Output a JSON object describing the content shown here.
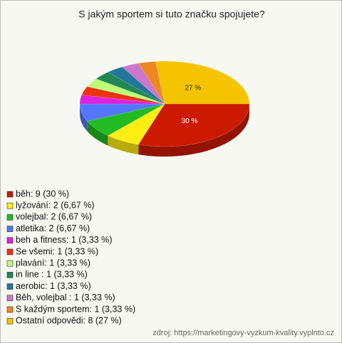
{
  "chart_data": {
    "type": "pie",
    "title": "S jakým sportem si tuto značku spojujete?",
    "categories": [
      "běh: 9 (30 %)",
      "lyžování: 2 (6,67 %)",
      "volejbal: 2 (6,67 %)",
      "atletika: 2 (6,67 %)",
      "beh a fitness: 1 (3,33 %)",
      "Se všemi: 1 (3,33 %)",
      "plavání: 1 (3,33 %)",
      "in line : 1 (3,33 %)",
      "aerobic: 1 (3,33 %)",
      "Běh, volejbal : 1 (3,33 %)",
      "S každým sportem: 1 (3,33 %)",
      "Ostatní odpovědi: 8 (27 %)"
    ],
    "values": [
      9,
      2,
      2,
      2,
      1,
      1,
      1,
      1,
      1,
      1,
      1,
      8
    ],
    "value_labels": [
      "30 %",
      null,
      null,
      null,
      null,
      null,
      null,
      null,
      null,
      null,
      null,
      "27 %"
    ],
    "colors": [
      "#cc1a00",
      "#ffee11",
      "#22bb22",
      "#5577ff",
      "#dd22dd",
      "#ee3311",
      "#bbff77",
      "#228855",
      "#227799",
      "#cc77cc",
      "#ee8822",
      "#f5c400"
    ],
    "legend": "bottom-left",
    "source": "zdroj: https://marketingovy-vyzkum-kvality.vyplnto.cz"
  }
}
